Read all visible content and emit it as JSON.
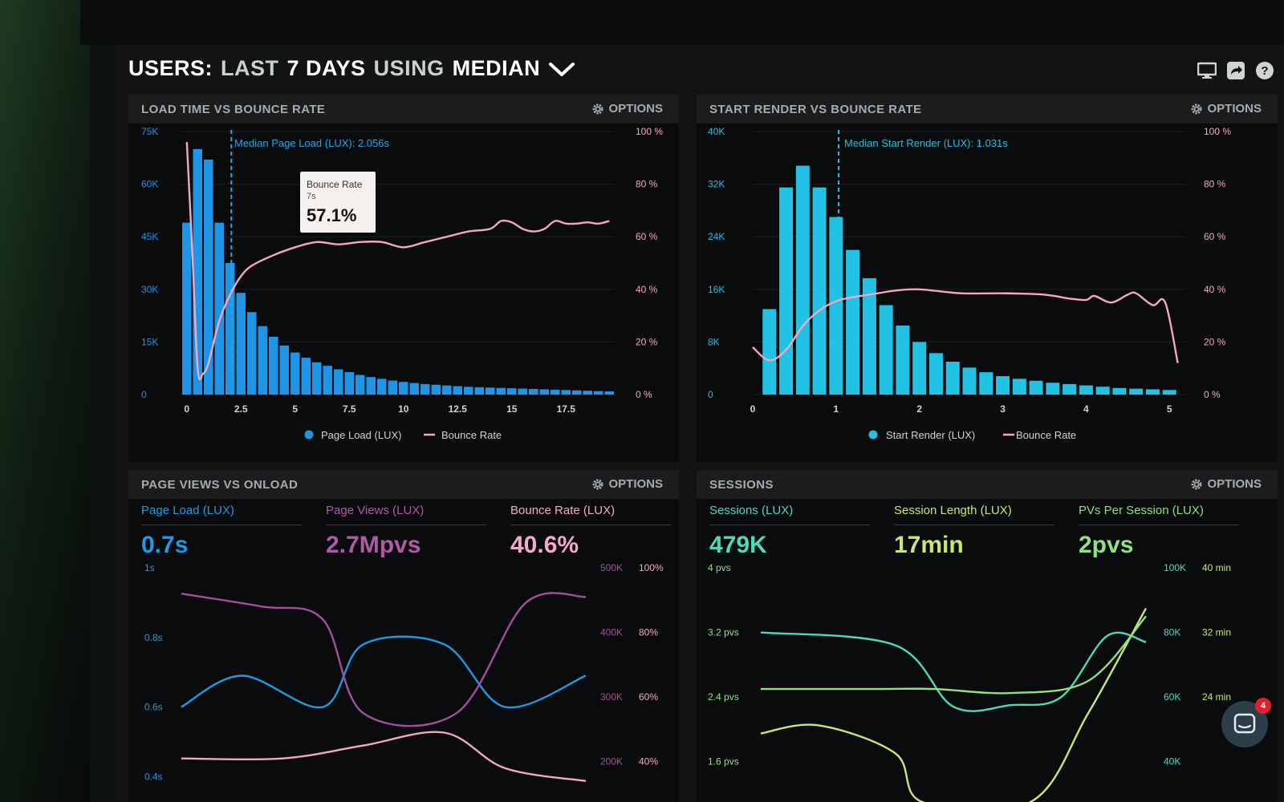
{
  "header": {
    "users": "USERS:",
    "last": "LAST",
    "days": "7 DAYS",
    "using": "USING",
    "median": "MEDIAN"
  },
  "colors": {
    "bar_blue": "#1e95e6",
    "bar_cyan": "#22c2e4",
    "bounce_pink": "#f4a6c3",
    "views_purple": "#a34f9e",
    "sessions_teal": "#4fd9b4",
    "length_lime": "#c7e873",
    "pvs_green": "#8ee27f"
  },
  "options_label": "OPTIONS",
  "panels": {
    "load": {
      "title": "LOAD TIME VS BOUNCE RATE",
      "median_label": "Median Page Load (LUX): 2.056s",
      "legend_bars": "Page Load (LUX)",
      "legend_line": "Bounce Rate",
      "tooltip": {
        "title": "Bounce Rate",
        "sub": "7s",
        "value": "57.1%"
      }
    },
    "render": {
      "title": "START RENDER VS BOUNCE RATE",
      "median_label": "Median Start Render (LUX): 1.031s",
      "legend_bars": "Start Render (LUX)",
      "legend_line": "Bounce Rate"
    },
    "pageviews": {
      "title": "PAGE VIEWS VS ONLOAD",
      "metrics": [
        {
          "label": "Page Load (LUX)",
          "value": "0.7s",
          "color": "#1e9be6"
        },
        {
          "label": "Page Views (LUX)",
          "value": "2.7Mpvs",
          "color": "#b05aa7"
        },
        {
          "label": "Bounce Rate (LUX)",
          "value": "40.6%",
          "color": "#f6a9c7"
        }
      ]
    },
    "sessions": {
      "title": "SESSIONS",
      "metrics": [
        {
          "label": "Sessions (LUX)",
          "value": "479K",
          "color": "#4fd9b4"
        },
        {
          "label": "Session Length (LUX)",
          "value": "17min",
          "color": "#c7e873"
        },
        {
          "label": "PVs Per Session (LUX)",
          "value": "2pvs",
          "color": "#8ee27f"
        }
      ]
    }
  },
  "chat": {
    "badge": "4"
  },
  "chart_data": [
    {
      "type": "bar",
      "title": "LOAD TIME VS BOUNCE RATE",
      "x_ticks": [
        "0",
        "2.5",
        "5",
        "7.5",
        "10",
        "12.5",
        "15",
        "17.5"
      ],
      "x_tick_values": [
        0,
        2.5,
        5,
        7.5,
        10,
        12.5,
        15,
        17.5
      ],
      "xlim": [
        -0.25,
        19.75
      ],
      "y_left_ticks": [
        "0",
        "15K",
        "30K",
        "45K",
        "60K",
        "75K"
      ],
      "y_left_tick_values": [
        0,
        15000,
        30000,
        45000,
        60000,
        75000
      ],
      "y_right_ticks": [
        "0 %",
        "20 %",
        "40 %",
        "60 %",
        "80 %",
        "100 %"
      ],
      "y_right_tick_values": [
        0,
        20,
        40,
        60,
        80,
        100
      ],
      "ylim_left": [
        0,
        75000
      ],
      "ylim_right": [
        0,
        100
      ],
      "median_x": 2.056,
      "series": [
        {
          "name": "Page Load (LUX)",
          "axis": "left",
          "kind": "bar",
          "color": "#1e95e6",
          "x": [
            0,
            0.5,
            1,
            1.5,
            2,
            2.5,
            3,
            3.5,
            4,
            4.5,
            5,
            5.5,
            6,
            6.5,
            7,
            7.5,
            8,
            8.5,
            9,
            9.5,
            10,
            10.5,
            11,
            11.5,
            12,
            12.5,
            13,
            13.5,
            14,
            14.5,
            15,
            15.5,
            16,
            16.5,
            17,
            17.5,
            18,
            18.5,
            19,
            19.5
          ],
          "values": [
            49000,
            70000,
            67000,
            49000,
            37500,
            29000,
            23500,
            19500,
            16500,
            14000,
            12000,
            10500,
            9200,
            8200,
            7200,
            6400,
            5600,
            5000,
            4500,
            4000,
            3600,
            3300,
            3000,
            2800,
            2600,
            2400,
            2200,
            2100,
            2000,
            1900,
            1800,
            1700,
            1600,
            1500,
            1400,
            1300,
            1200,
            1100,
            1000,
            900
          ]
        },
        {
          "name": "Bounce Rate",
          "axis": "right",
          "kind": "line",
          "color": "#f4a6c3",
          "x": [
            0,
            0.25,
            0.5,
            0.75,
            1,
            1.5,
            2,
            2.5,
            3,
            4,
            5,
            6,
            7,
            8,
            9,
            10,
            11,
            12,
            13,
            14,
            14.5,
            15,
            15.5,
            16,
            16.5,
            17,
            17.5,
            18,
            18.5,
            19,
            19.5
          ],
          "values": [
            96,
            55,
            10,
            8,
            12,
            28,
            38,
            45,
            49,
            53,
            56,
            58,
            57.1,
            58,
            58,
            56,
            58,
            60,
            62,
            63,
            66,
            65.5,
            63,
            62,
            63,
            66,
            65,
            65,
            65.5,
            65,
            66
          ]
        }
      ]
    },
    {
      "type": "bar",
      "title": "START RENDER VS BOUNCE RATE",
      "x_ticks": [
        "0",
        "1",
        "2",
        "3",
        "4",
        "5"
      ],
      "x_tick_values": [
        0,
        1,
        2,
        3,
        4,
        5
      ],
      "xlim": [
        0,
        5.2
      ],
      "y_left_ticks": [
        "0",
        "8K",
        "16K",
        "24K",
        "32K",
        "40K"
      ],
      "y_left_tick_values": [
        0,
        8000,
        16000,
        24000,
        32000,
        40000
      ],
      "y_right_ticks": [
        "0 %",
        "20 %",
        "40 %",
        "60 %",
        "80 %",
        "100 %"
      ],
      "y_right_tick_values": [
        0,
        20,
        40,
        60,
        80,
        100
      ],
      "ylim_left": [
        0,
        40000
      ],
      "ylim_right": [
        0,
        100
      ],
      "median_x": 1.031,
      "series": [
        {
          "name": "Start Render (LUX)",
          "axis": "left",
          "kind": "bar",
          "color": "#22c2e4",
          "x": [
            0.2,
            0.4,
            0.6,
            0.8,
            1.0,
            1.2,
            1.4,
            1.6,
            1.8,
            2.0,
            2.2,
            2.4,
            2.6,
            2.8,
            3.0,
            3.2,
            3.4,
            3.6,
            3.8,
            4.0,
            4.2,
            4.4,
            4.6,
            4.8,
            5.0
          ],
          "values": [
            13000,
            31500,
            34800,
            31500,
            27000,
            22000,
            17700,
            13600,
            10500,
            8000,
            6300,
            5000,
            4100,
            3400,
            2800,
            2400,
            2100,
            1800,
            1600,
            1400,
            1200,
            1000,
            900,
            800,
            700
          ]
        },
        {
          "name": "Bounce Rate",
          "axis": "right",
          "kind": "line",
          "color": "#f4a6c3",
          "x": [
            0,
            0.2,
            0.4,
            0.6,
            0.8,
            1.0,
            1.2,
            1.5,
            1.7,
            2,
            2.5,
            3,
            3.5,
            3.8,
            4.0,
            4.1,
            4.3,
            4.5,
            4.6,
            4.8,
            4.95,
            5.1
          ],
          "values": [
            18,
            13,
            17,
            26,
            32,
            35.5,
            37,
            38.5,
            39.5,
            40,
            38.5,
            38.5,
            38,
            36.5,
            36,
            37.5,
            35,
            38,
            38.5,
            34,
            35,
            12
          ]
        }
      ]
    },
    {
      "type": "line",
      "title": "PAGE VIEWS VS ONLOAD",
      "xlim": [
        0,
        10
      ],
      "y_left_ticks": [
        "0.4s",
        "0.6s",
        "0.8s",
        "1s"
      ],
      "y_left_tick_values": [
        0.4,
        0.6,
        0.8,
        1.0
      ],
      "ylim_left": [
        0.35,
        1.0
      ],
      "y_right_ticks": [
        "200K",
        "300K",
        "400K",
        "500K"
      ],
      "y_right_tick_values": [
        200000,
        300000,
        400000,
        500000
      ],
      "ylim_right": [
        150000,
        500000
      ],
      "y_right2_ticks": [
        "40%",
        "60%",
        "80%",
        "100%"
      ],
      "y_right2_tick_values": [
        40,
        60,
        80,
        100
      ],
      "ylim_right2": [
        30,
        100
      ],
      "series": [
        {
          "name": "Page Load (LUX)",
          "axis": "left",
          "color": "#1e9be6",
          "x": [
            0,
            1.5,
            3.5,
            4.5,
            6.5,
            8,
            10
          ],
          "values": [
            0.6,
            0.69,
            0.6,
            0.78,
            0.78,
            0.6,
            0.69
          ]
        },
        {
          "name": "Page Views (LUX)",
          "axis": "right",
          "color": "#a34f9e",
          "x": [
            0,
            2,
            3.5,
            4.5,
            6.8,
            8.5,
            10
          ],
          "values": [
            460000,
            440000,
            420000,
            275000,
            275000,
            445000,
            455000
          ]
        },
        {
          "name": "Bounce Rate (LUX)",
          "axis": "right2",
          "color": "#f4a6c3",
          "x": [
            0,
            2.5,
            4.5,
            6.5,
            8,
            10
          ],
          "values": [
            41,
            41,
            45,
            49,
            38,
            34
          ]
        }
      ]
    },
    {
      "type": "line",
      "title": "SESSIONS",
      "xlim": [
        0,
        10
      ],
      "y_left_ticks": [
        "1.6 pvs",
        "2.4 pvs",
        "3.2 pvs",
        "4 pvs"
      ],
      "y_left_tick_values": [
        1.6,
        2.4,
        3.2,
        4.0
      ],
      "ylim_left": [
        1.2,
        4.0
      ],
      "y_right_ticks": [
        "40K",
        "60K",
        "80K",
        "100K"
      ],
      "y_right_tick_values": [
        40000,
        60000,
        80000,
        100000
      ],
      "ylim_right": [
        30000,
        100000
      ],
      "y_right2_ticks": [
        "24 min",
        "32 min",
        "40 min"
      ],
      "y_right2_tick_values": [
        24,
        32,
        40
      ],
      "ylim_right2": [
        12,
        40
      ],
      "series": [
        {
          "name": "Sessions (LUX)",
          "axis": "right",
          "color": "#4fd9b4",
          "x": [
            0,
            3.5,
            5,
            6.5,
            7.8,
            9,
            10
          ],
          "values": [
            80000,
            76000,
            57000,
            57500,
            60000,
            79000,
            77000
          ]
        },
        {
          "name": "Session Length (LUX)",
          "axis": "right2",
          "color": "#c7e873",
          "x": [
            0,
            1.5,
            3.5,
            4.2,
            7,
            8.5,
            10
          ],
          "values": [
            19.5,
            20.5,
            17,
            11,
            11,
            22,
            35
          ]
        },
        {
          "name": "PVs Per Session (LUX)",
          "axis": "left",
          "color": "#8ee27f",
          "x": [
            0,
            3,
            4.5,
            6.5,
            8.5,
            10
          ],
          "values": [
            2.5,
            2.5,
            2.5,
            2.45,
            2.6,
            3.4
          ]
        }
      ]
    }
  ]
}
